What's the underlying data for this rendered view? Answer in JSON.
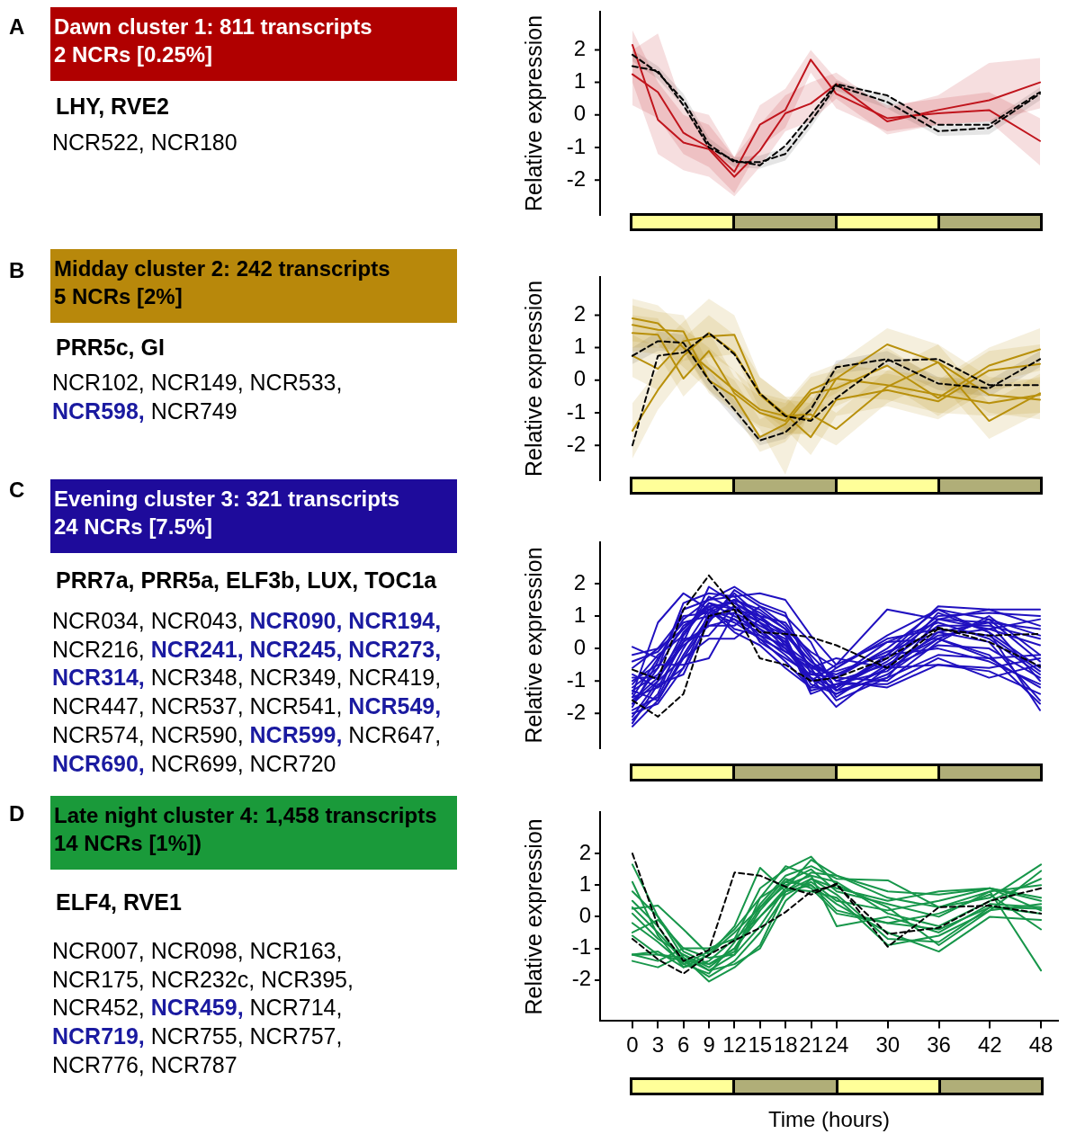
{
  "chart_data": [
    {
      "type": "other",
      "title": "Dawn cluster 1: 811 transcripts\n2 NCRs [0.25%]",
      "subtitle": "LHY, RVE2",
      "color": "#b00000",
      "annotations": [
        "A",
        "NCR522,",
        "NCR180"
      ],
      "colors": [
        "#000000",
        "#000000",
        "#000000"
      ]
    },
    {
      "type": "line",
      "x": [
        0,
        3,
        6,
        9,
        12,
        15,
        18,
        21,
        24,
        30,
        36,
        42,
        48
      ],
      "xlim": [
        0,
        48
      ],
      "xticks": [
        0,
        3,
        6,
        9,
        12,
        15,
        18,
        21,
        24,
        30,
        36,
        42,
        48
      ],
      "ylim": [
        -3.1,
        3.2
      ],
      "yticks": [
        -2,
        -1,
        0,
        1,
        2
      ],
      "ylabel": "Relative expression",
      "tick_labels": "y",
      "legend": false,
      "grid": false,
      "marker": "none",
      "line_style": "solid",
      "series": [
        {
          "color": "#c0141c",
          "values": [
            2.15,
            -0.15,
            -0.85,
            -1.05,
            -1.9,
            -1.1,
            0.05,
            0.35,
            0.95,
            -0.2,
            0.15,
            0.45,
            1.0
          ],
          "lower": [
            1.0,
            -1.2,
            -1.7,
            -1.9,
            -2.5,
            -1.6,
            -0.5,
            -0.2,
            0.5,
            -0.6,
            -0.3,
            -0.2,
            0.2
          ],
          "upper": [
            2.6,
            1.0,
            0.0,
            -0.3,
            -1.3,
            -0.3,
            0.6,
            1.0,
            1.3,
            0.2,
            0.6,
            1.6,
            1.75
          ]
        },
        {
          "color": "#c0141c",
          "values": [
            1.25,
            0.7,
            -0.55,
            -1.0,
            -1.75,
            -0.3,
            0.15,
            1.7,
            0.65,
            -0.1,
            0.05,
            0.15,
            -0.8
          ],
          "lower": [
            0.3,
            -0.1,
            -1.2,
            -1.6,
            -2.4,
            -1.0,
            -0.4,
            1.3,
            0.2,
            -0.5,
            -0.3,
            -0.2,
            -1.55
          ],
          "upper": [
            2.0,
            2.5,
            0.2,
            0.0,
            -1.3,
            0.3,
            0.8,
            2.0,
            1.1,
            0.3,
            0.5,
            0.7,
            -0.1
          ]
        },
        {
          "color": "#000000",
          "line_style": "dashed",
          "values": [
            1.85,
            1.3,
            0.45,
            -0.9,
            -1.45,
            -1.45,
            -1.2,
            -0.2,
            0.9,
            0.4,
            -0.5,
            -0.4,
            0.65
          ],
          "lower": [
            1.65,
            1.1,
            0.25,
            -1.1,
            -1.6,
            -1.65,
            -1.4,
            -0.4,
            0.75,
            0.2,
            -0.65,
            -0.6,
            0.45
          ],
          "upper": [
            2.0,
            1.5,
            0.65,
            -0.7,
            -1.3,
            -1.25,
            -1.0,
            0.0,
            1.05,
            0.6,
            -0.3,
            -0.2,
            0.85
          ]
        },
        {
          "color": "#000000",
          "line_style": "dashed",
          "values": [
            1.5,
            1.35,
            0.3,
            -1.0,
            -1.4,
            -1.55,
            -0.95,
            0.0,
            0.95,
            0.6,
            -0.3,
            -0.3,
            0.7
          ]
        }
      ]
    },
    {
      "type": "other",
      "title": "Midday cluster 2: 242 transcripts\n5 NCRs [2%]",
      "subtitle": "PRR5c, GI",
      "color": "#b8880b",
      "annotations": [
        "B",
        "NCR102,",
        "NCR149,",
        "NCR533,",
        "NCR598,",
        "NCR749"
      ],
      "colors": [
        "#000000",
        "#000000",
        "#000000",
        "#000000",
        "#1a1aa0",
        "#000000"
      ]
    },
    {
      "type": "line",
      "x": [
        0,
        3,
        6,
        9,
        12,
        15,
        18,
        21,
        24,
        30,
        36,
        42,
        48
      ],
      "xlim": [
        0,
        48
      ],
      "xticks": [
        0,
        3,
        6,
        9,
        12,
        15,
        18,
        21,
        24,
        30,
        36,
        42,
        48
      ],
      "ylim": [
        -3.1,
        3.2
      ],
      "yticks": [
        -2,
        -1,
        0,
        1,
        2
      ],
      "ylabel": "Relative expression",
      "tick_labels": "y",
      "legend": false,
      "grid": false,
      "marker": "none",
      "line_style": "solid",
      "series": [
        {
          "color": "#b8900b",
          "values": [
            1.9,
            1.75,
            1.0,
            0.35,
            -0.3,
            -0.9,
            -1.1,
            -1.2,
            0.05,
            -0.15,
            -0.45,
            -0.7,
            -0.45
          ],
          "lower": [
            1.2,
            1.1,
            0.4,
            -0.3,
            -0.9,
            -1.4,
            -1.6,
            -1.7,
            -0.5,
            -0.6,
            -1.0,
            -1.1,
            -1.0
          ],
          "upper": [
            2.5,
            2.3,
            1.6,
            1.0,
            0.3,
            -0.4,
            -0.6,
            -0.7,
            0.5,
            0.3,
            0.1,
            -0.2,
            0.1
          ]
        },
        {
          "color": "#b8900b",
          "values": [
            1.7,
            1.55,
            1.5,
            0.0,
            -0.5,
            -1.75,
            -1.35,
            -0.4,
            -0.25,
            0.45,
            -0.55,
            0.45,
            0.95
          ],
          "lower": [
            1.0,
            1.0,
            0.9,
            -0.4,
            -1.0,
            -2.2,
            -1.9,
            -1.0,
            -0.8,
            -0.1,
            -1.1,
            -0.1,
            0.3
          ],
          "upper": [
            2.3,
            2.1,
            2.0,
            0.5,
            0.0,
            -1.2,
            -0.8,
            0.1,
            0.3,
            1.0,
            0.0,
            1.0,
            1.6
          ]
        },
        {
          "color": "#b8900b",
          "values": [
            1.45,
            1.4,
            0.05,
            0.9,
            -0.4,
            -1.0,
            -1.25,
            -0.3,
            0.05,
            1.1,
            0.55,
            -0.45,
            -0.6
          ],
          "lower": [
            0.9,
            0.8,
            -0.5,
            0.3,
            -0.9,
            -1.5,
            -2.9,
            -0.8,
            -0.4,
            0.6,
            0.0,
            -1.0,
            -1.2
          ],
          "upper": [
            2.0,
            1.9,
            0.6,
            1.5,
            0.1,
            -0.5,
            -0.7,
            0.2,
            0.5,
            1.6,
            1.1,
            0.1,
            0.0
          ]
        },
        {
          "color": "#b8900b",
          "values": [
            0.75,
            0.35,
            1.2,
            1.35,
            1.4,
            -0.4,
            -1.05,
            -1.75,
            -0.6,
            -0.3,
            -0.65,
            0.3,
            0.5
          ],
          "lower": [
            0.1,
            -0.3,
            0.6,
            0.7,
            0.8,
            -0.9,
            -1.5,
            -2.3,
            -1.1,
            -0.8,
            -1.2,
            -0.3,
            -0.1
          ],
          "upper": [
            1.4,
            1.0,
            1.8,
            2.5,
            2.0,
            0.1,
            -0.5,
            -1.2,
            -0.1,
            0.2,
            -0.1,
            0.9,
            1.1
          ]
        },
        {
          "color": "#b8900b",
          "values": [
            -1.55,
            -0.3,
            0.75,
            1.45,
            0.85,
            -0.45,
            -1.1,
            -1.05,
            -1.5,
            -0.2,
            0.55,
            -1.25,
            -0.4
          ],
          "lower": [
            -2.4,
            -0.9,
            0.1,
            0.8,
            0.3,
            -1.0,
            -1.7,
            -1.6,
            -2.0,
            -0.7,
            0.0,
            -1.8,
            -1.0
          ],
          "upper": [
            -0.7,
            0.3,
            1.3,
            2.0,
            1.4,
            0.1,
            -0.5,
            -0.5,
            -1.0,
            0.3,
            1.1,
            -0.7,
            0.2
          ]
        },
        {
          "color": "#000000",
          "line_style": "dashed",
          "values": [
            0.75,
            1.2,
            1.15,
            0.0,
            -0.9,
            -1.85,
            -1.6,
            -0.9,
            0.4,
            0.65,
            -0.1,
            -0.25,
            0.65
          ],
          "lower": [
            0.5,
            0.9,
            0.9,
            -0.3,
            -1.2,
            -2.0,
            -1.8,
            -1.1,
            0.2,
            0.4,
            -0.3,
            -0.5,
            0.4
          ],
          "upper": [
            1.0,
            1.5,
            1.4,
            0.3,
            -0.6,
            -1.7,
            -1.4,
            -0.7,
            0.6,
            0.9,
            0.1,
            0.0,
            0.9
          ]
        },
        {
          "color": "#000000",
          "line_style": "dashed",
          "values": [
            -2.0,
            0.75,
            0.85,
            1.45,
            0.8,
            -0.4,
            -1.1,
            -1.25,
            -0.55,
            0.6,
            0.65,
            -0.15,
            -0.15
          ]
        }
      ]
    },
    {
      "type": "other",
      "title": "Evening cluster 3: 321 transcripts\n24 NCRs [7.5%]",
      "subtitle": "PRR7a, PRR5a, ELF3b, LUX, TOC1a",
      "color": "#1e0b9b",
      "annotations": [
        "C",
        "NCR034,",
        "NCR043,",
        "NCR090,",
        "NCR194,",
        "NCR216,",
        "NCR241,",
        "NCR245,",
        "NCR273,",
        "NCR314,",
        "NCR348,",
        "NCR349,",
        "NCR419,",
        "NCR447,",
        "NCR537,",
        "NCR541,",
        "NCR549,",
        "NCR574,",
        "NCR590,",
        "NCR599,",
        "NCR647,",
        "NCR690,",
        "NCR699,",
        "NCR720"
      ],
      "colors": [
        "#000000",
        "#000000",
        "#000000",
        "#1a1aa0",
        "#1a1aa0",
        "#000000",
        "#1a1aa0",
        "#1a1aa0",
        "#1a1aa0",
        "#1a1aa0",
        "#000000",
        "#000000",
        "#000000",
        "#000000",
        "#000000",
        "#000000",
        "#1a1aa0",
        "#000000",
        "#000000",
        "#1a1aa0",
        "#000000",
        "#1a1aa0",
        "#000000",
        "#000000"
      ]
    },
    {
      "type": "line",
      "x": [
        0,
        3,
        6,
        9,
        12,
        15,
        18,
        21,
        24,
        30,
        36,
        42,
        48
      ],
      "xlim": [
        0,
        48
      ],
      "xticks": [
        0,
        3,
        6,
        9,
        12,
        15,
        18,
        21,
        24,
        30,
        36,
        42,
        48
      ],
      "ylim": [
        -3.1,
        3.3
      ],
      "yticks": [
        -2,
        -1,
        0,
        1,
        2
      ],
      "ylabel": "Relative expression",
      "tick_labels": "y",
      "legend": false,
      "grid": false,
      "marker": "none",
      "line_style": "solid",
      "series": [
        {
          "color": "#2010c0",
          "values": [
            -2.4,
            -1.6,
            -0.2,
            1.0,
            1.5,
            1.2,
            0.6,
            -0.6,
            -1.6,
            -0.9,
            0.9,
            0.8,
            -1.0
          ]
        },
        {
          "color": "#2010c0",
          "values": [
            -2.2,
            -1.4,
            0.4,
            1.4,
            1.2,
            0.8,
            0.2,
            -0.9,
            -1.8,
            -0.6,
            1.1,
            0.5,
            -1.9
          ]
        },
        {
          "color": "#2010c0",
          "values": [
            -2.0,
            -1.7,
            -0.6,
            0.8,
            1.8,
            1.3,
            1.0,
            0.2,
            -1.3,
            -0.2,
            1.3,
            1.2,
            1.2
          ]
        },
        {
          "color": "#2010c0",
          "values": [
            -1.8,
            -0.4,
            1.2,
            1.5,
            1.6,
            1.7,
            1.5,
            0.4,
            -0.5,
            1.2,
            0.9,
            0.6,
            0.1
          ]
        },
        {
          "color": "#2010c0",
          "values": [
            -1.7,
            -1.0,
            -0.3,
            0.9,
            1.7,
            1.0,
            0.4,
            -1.3,
            -1.1,
            -0.7,
            0.5,
            0.2,
            -1.6
          ]
        },
        {
          "color": "#2010c0",
          "values": [
            -1.6,
            -0.9,
            0.2,
            1.9,
            1.4,
            1.0,
            0.1,
            -0.9,
            -1.4,
            -0.8,
            0.3,
            -0.3,
            -1.2
          ]
        },
        {
          "color": "#2010c0",
          "values": [
            -1.5,
            -0.3,
            0.6,
            1.4,
            1.0,
            0.6,
            -0.1,
            -0.5,
            -1.2,
            -0.3,
            0.9,
            1.2,
            0.7
          ]
        },
        {
          "color": "#2010c0",
          "values": [
            -1.4,
            0.8,
            1.7,
            1.2,
            0.9,
            0.3,
            -0.4,
            -1.2,
            -0.6,
            0.4,
            1.2,
            0.9,
            -0.4
          ]
        },
        {
          "color": "#2010c0",
          "values": [
            -1.3,
            -1.6,
            -0.3,
            0.3,
            0.3,
            0.9,
            0.5,
            -0.4,
            -0.9,
            0.2,
            0.8,
            0.3,
            -0.8
          ]
        },
        {
          "color": "#2010c0",
          "values": [
            -1.2,
            -0.6,
            0.7,
            1.2,
            1.5,
            0.2,
            -0.3,
            -0.8,
            -0.7,
            -0.2,
            0.0,
            -0.4,
            -1.1
          ]
        },
        {
          "color": "#2010c0",
          "values": [
            -1.1,
            -0.2,
            0.4,
            1.6,
            1.2,
            1.0,
            0.8,
            -0.2,
            -1.0,
            -0.5,
            0.4,
            0.6,
            0.9
          ]
        },
        {
          "color": "#2010c0",
          "values": [
            -1.0,
            -0.5,
            -0.5,
            -0.3,
            1.1,
            0.7,
            0.3,
            -1.4,
            -1.1,
            -1.1,
            -0.3,
            -0.9,
            -0.5
          ]
        },
        {
          "color": "#2010c0",
          "values": [
            -0.9,
            -0.9,
            0.1,
            0.7,
            0.9,
            0.5,
            0.0,
            -0.7,
            -1.3,
            -0.9,
            -0.2,
            -0.3,
            -0.2
          ]
        },
        {
          "color": "#2010c0",
          "values": [
            -0.8,
            -1.2,
            -0.6,
            1.1,
            1.5,
            1.1,
            0.6,
            -0.1,
            -0.6,
            0.3,
            0.6,
            0.4,
            -0.7
          ]
        },
        {
          "color": "#2010c0",
          "values": [
            -0.6,
            0.0,
            1.0,
            1.1,
            0.8,
            0.3,
            -0.1,
            -0.6,
            -0.3,
            -0.6,
            -0.5,
            -0.7,
            -1.4
          ]
        },
        {
          "color": "#2010c0",
          "values": [
            -0.2,
            0.0,
            0.6,
            1.3,
            0.6,
            0.4,
            -0.2,
            -0.9,
            -1.2,
            -0.4,
            0.7,
            0.7,
            0.3
          ]
        },
        {
          "color": "#2010c0",
          "values": [
            0.05,
            -0.3,
            0.9,
            1.5,
            1.9,
            1.4,
            1.1,
            -0.8,
            -0.9,
            -1.0,
            0.2,
            1.0,
            -0.2
          ]
        },
        {
          "color": "#2010c0",
          "values": [
            -1.5,
            -1.2,
            0.2,
            0.7,
            0.7,
            1.3,
            0.7,
            -0.3,
            -1.5,
            -0.5,
            0.3,
            0.9,
            0.4
          ]
        },
        {
          "color": "#2010c0",
          "values": [
            -2.3,
            -1.1,
            -0.8,
            0.9,
            1.3,
            0.6,
            0.2,
            -1.1,
            -1.4,
            -0.6,
            0.1,
            0.0,
            -0.9
          ]
        },
        {
          "color": "#2010c0",
          "values": [
            -1.9,
            -1.5,
            0.0,
            1.2,
            0.5,
            0.1,
            -0.6,
            -1.2,
            -1.2,
            -0.2,
            1.0,
            1.1,
            1.0
          ]
        },
        {
          "color": "#2010c0",
          "values": [
            -1.3,
            -0.8,
            0.3,
            0.4,
            1.3,
            0.8,
            0.4,
            -0.4,
            -1.0,
            -1.2,
            -0.5,
            -0.6,
            -0.3
          ]
        },
        {
          "color": "#2010c0",
          "values": [
            -1.7,
            -0.6,
            1.4,
            1.7,
            1.6,
            0.8,
            0.0,
            -1.0,
            -0.5,
            0.2,
            0.3,
            -0.2,
            -1.7
          ]
        },
        {
          "color": "#2010c0",
          "values": [
            -2.1,
            -1.0,
            0.5,
            1.3,
            1.4,
            0.9,
            0.5,
            -0.6,
            -0.8,
            -0.1,
            0.5,
            0.8,
            0.6
          ]
        },
        {
          "color": "#2010c0",
          "values": [
            -0.4,
            -0.1,
            0.8,
            1.0,
            1.1,
            0.4,
            0.1,
            -0.5,
            -0.9,
            0.0,
            1.2,
            0.5,
            -0.6
          ]
        },
        {
          "color": "#000000",
          "line_style": "dashed",
          "values": [
            -0.65,
            -0.95,
            1.2,
            2.25,
            1.3,
            0.5,
            0.45,
            0.35,
            0.1,
            -0.6,
            0.6,
            0.4,
            0.45
          ]
        },
        {
          "color": "#000000",
          "line_style": "dashed",
          "values": [
            -1.6,
            -2.1,
            -1.4,
            1.0,
            1.2,
            -0.3,
            -0.5,
            -1.0,
            -0.9,
            -0.3,
            0.65,
            0.2,
            -0.55
          ]
        }
      ]
    },
    {
      "type": "other",
      "title": "Late night cluster 4: 1,458 transcripts\n14 NCRs [1%])",
      "subtitle": "ELF4, RVE1",
      "color": "#1a9a3a",
      "annotations": [
        "D",
        "NCR007,",
        "NCR098,",
        "NCR163,",
        "NCR175,",
        "NCR232c,",
        "NCR395,",
        "NCR452,",
        "NCR459,",
        "NCR714,",
        "NCR719,",
        "NCR755,",
        "NCR757,",
        "NCR776,",
        "NCR787"
      ],
      "colors": [
        "#000000",
        "#000000",
        "#000000",
        "#000000",
        "#000000",
        "#000000",
        "#000000",
        "#000000",
        "#1a1aa0",
        "#000000",
        "#1a1aa0",
        "#000000",
        "#000000",
        "#000000",
        "#000000"
      ]
    },
    {
      "type": "line",
      "x": [
        0,
        3,
        6,
        9,
        12,
        15,
        18,
        21,
        24,
        30,
        36,
        42,
        48
      ],
      "xlim": [
        -3.8,
        50
      ],
      "xticks": [
        0,
        3,
        6,
        9,
        12,
        15,
        18,
        21,
        24,
        30,
        36,
        42,
        48
      ],
      "ylim": [
        -3.3,
        3.3
      ],
      "yticks": [
        -2,
        -1,
        0,
        1,
        2
      ],
      "xlabel": "Time (hours)",
      "ylabel": "Relative expression",
      "legend": false,
      "grid": false,
      "marker": "none",
      "line_style": "solid",
      "series": [
        {
          "color": "#17964a",
          "values": [
            1.65,
            0.0,
            -1.3,
            -2.05,
            -1.6,
            -0.9,
            0.8,
            1.4,
            1.3,
            0.6,
            0.3,
            0.6,
            1.65
          ]
        },
        {
          "color": "#17964a",
          "values": [
            1.1,
            -0.6,
            -1.6,
            -1.4,
            -0.7,
            0.9,
            1.5,
            1.9,
            1.0,
            0.3,
            -0.9,
            0.2,
            1.45
          ]
        },
        {
          "color": "#17964a",
          "values": [
            0.5,
            -0.3,
            -1.5,
            -1.8,
            -0.8,
            0.4,
            1.3,
            1.6,
            1.2,
            1.15,
            0.3,
            0.8,
            1.0
          ]
        },
        {
          "color": "#17964a",
          "values": [
            0.25,
            0.35,
            -0.4,
            -1.2,
            -0.3,
            1.55,
            0.8,
            1.2,
            0.9,
            0.5,
            0.8,
            0.9,
            0.5
          ]
        },
        {
          "color": "#17964a",
          "values": [
            0.1,
            -0.7,
            -1.2,
            -1.6,
            -1.0,
            0.3,
            1.0,
            1.3,
            -0.3,
            0.0,
            -0.5,
            0.4,
            0.3
          ]
        },
        {
          "color": "#17964a",
          "values": [
            -0.5,
            -0.1,
            -1.0,
            -1.3,
            -1.2,
            0.6,
            1.1,
            1.0,
            0.4,
            -0.5,
            -1.1,
            0.0,
            -0.1
          ]
        },
        {
          "color": "#17964a",
          "values": [
            -1.2,
            -1.2,
            -1.4,
            -1.5,
            -1.0,
            0.0,
            0.9,
            1.8,
            1.3,
            0.8,
            0.7,
            0.9,
            0.2
          ]
        },
        {
          "color": "#17964a",
          "values": [
            -1.4,
            -1.6,
            -1.2,
            -1.7,
            -1.5,
            -1.0,
            0.5,
            1.2,
            0.7,
            -0.7,
            -0.8,
            0.3,
            0.1
          ]
        },
        {
          "color": "#17964a",
          "values": [
            -1.2,
            -1.1,
            -1.6,
            -1.2,
            -0.5,
            0.3,
            1.2,
            0.9,
            0.1,
            -0.2,
            0.1,
            0.7,
            -0.4
          ]
        },
        {
          "color": "#17964a",
          "values": [
            0.3,
            -0.5,
            -1.4,
            -1.9,
            -1.4,
            -0.5,
            0.7,
            1.1,
            0.5,
            0.2,
            0.5,
            0.9,
            0.6
          ]
        },
        {
          "color": "#17964a",
          "values": [
            0.8,
            0.0,
            -1.1,
            -1.5,
            -1.1,
            0.2,
            1.1,
            1.5,
            0.8,
            0.4,
            0.0,
            0.8,
            -1.7
          ]
        },
        {
          "color": "#17964a",
          "values": [
            -0.2,
            -0.8,
            -1.5,
            -1.1,
            -0.4,
            0.6,
            1.6,
            1.3,
            1.1,
            0.1,
            -0.3,
            0.5,
            1.2
          ]
        },
        {
          "color": "#17964a",
          "values": [
            -0.6,
            -1.2,
            -1.3,
            -1.7,
            -1.2,
            -0.3,
            0.9,
            0.8,
            0.6,
            -0.9,
            -0.6,
            0.2,
            0.4
          ]
        },
        {
          "color": "#17964a",
          "values": [
            -1.2,
            -1.4,
            -1.0,
            -1.0,
            -0.7,
            0.0,
            0.8,
            1.0,
            0.2,
            -0.2,
            -0.4,
            0.3,
            0.25
          ]
        },
        {
          "color": "#000000",
          "line_style": "dashed",
          "values": [
            2.0,
            -0.3,
            -1.4,
            -1.05,
            1.4,
            1.3,
            0.95,
            0.7,
            1.05,
            -0.95,
            0.3,
            0.35,
            0.1
          ]
        },
        {
          "color": "#000000",
          "line_style": "dashed",
          "values": [
            -0.7,
            -1.35,
            -1.8,
            -1.2,
            -0.75,
            -0.35,
            0.15,
            0.8,
            1.0,
            -0.55,
            -0.35,
            0.5,
            0.9
          ]
        }
      ]
    }
  ]
}
